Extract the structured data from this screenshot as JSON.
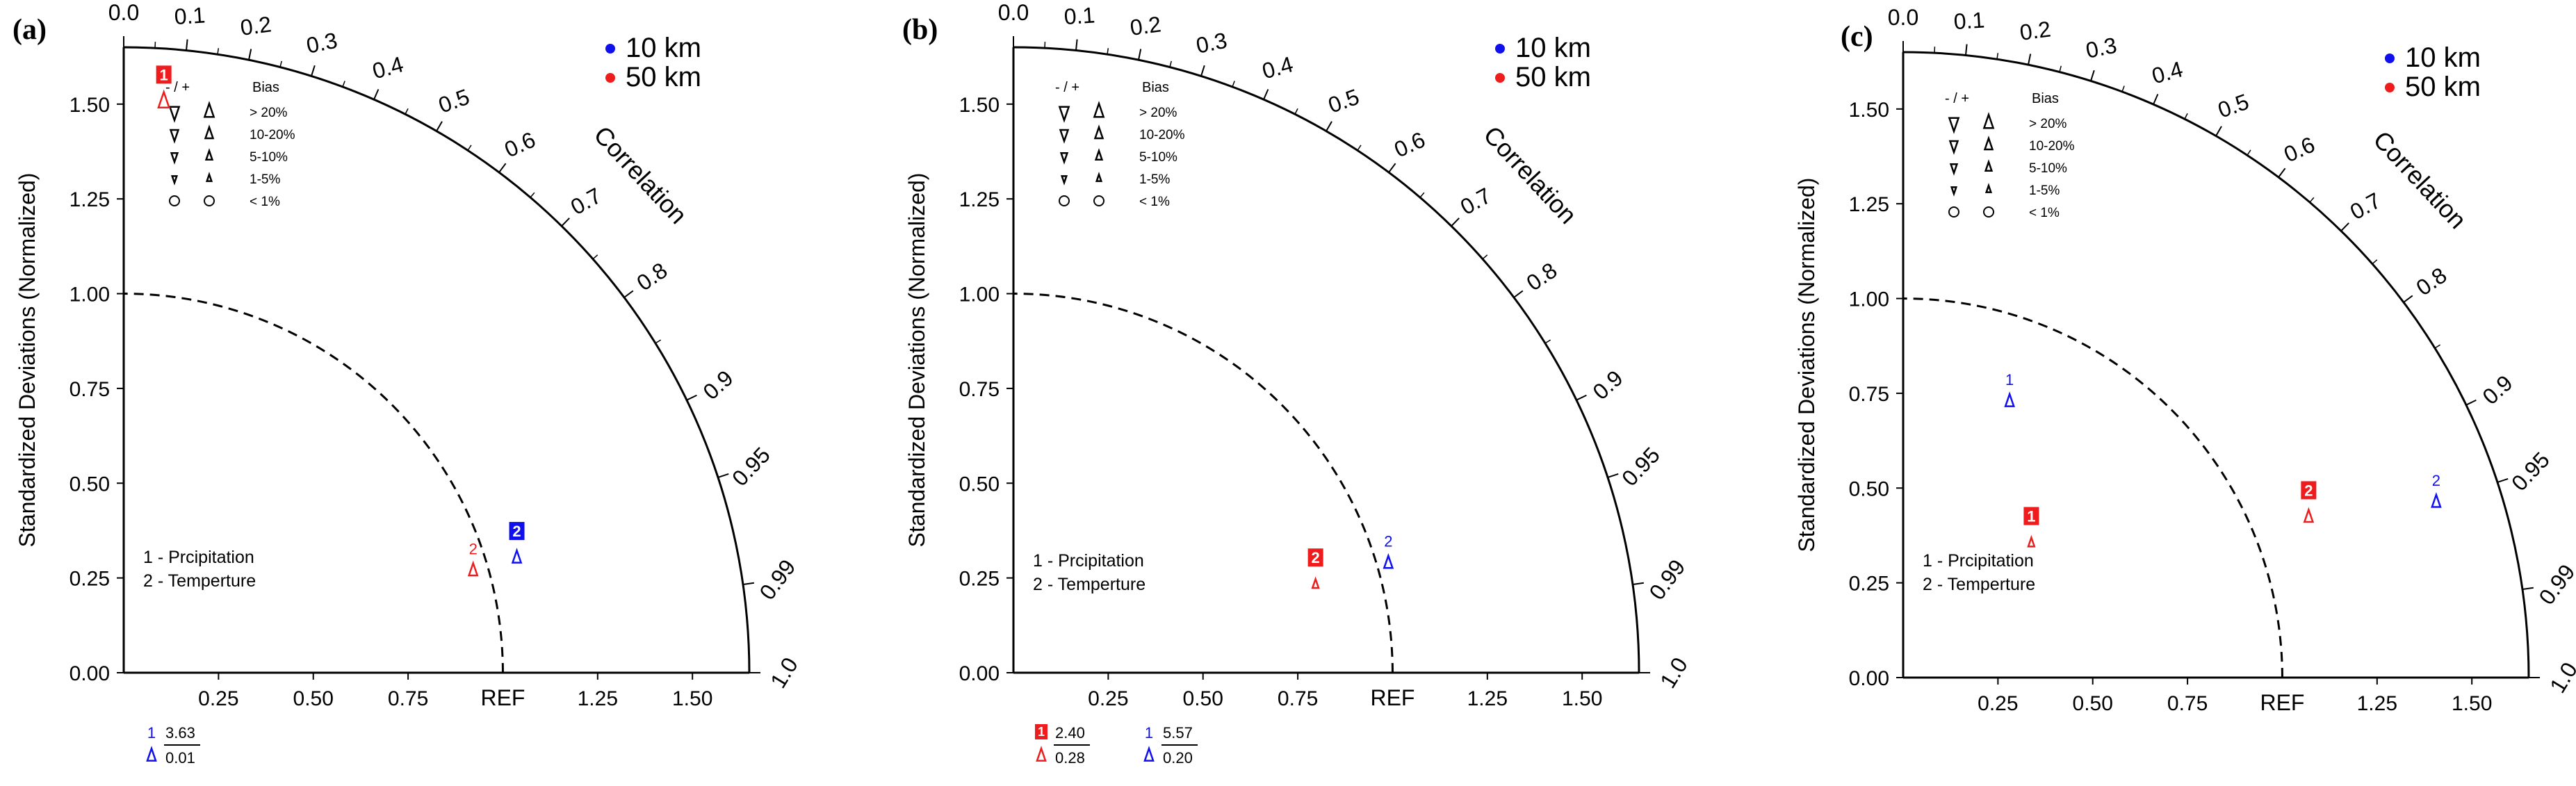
{
  "colors": {
    "series_10km": "#1010ee",
    "series_50km": "#ee1c1c",
    "axis": "#000000",
    "ref_arc": "#000000"
  },
  "shared": {
    "ylabel": "Standardized Deviations (Normalized)",
    "correlation_title": "Correlation",
    "ref_label": "REF",
    "x_ticks": [
      "0.25",
      "0.50",
      "0.75",
      "1.25",
      "1.50"
    ],
    "y_ticks": [
      "0.00",
      "0.25",
      "0.50",
      "0.75",
      "1.00",
      "1.25",
      "1.50"
    ],
    "corr_ticks": [
      "0.0",
      "0.1",
      "0.2",
      "0.3",
      "0.4",
      "0.5",
      "0.6",
      "0.7",
      "0.8",
      "0.9",
      "0.95",
      "0.99",
      "1.0"
    ],
    "legend_series": [
      {
        "name": "10 km",
        "color": "#1010ee"
      },
      {
        "name": "50 km",
        "color": "#ee1c1c"
      }
    ],
    "bias_legend": {
      "header": "Bias",
      "rows": [
        "> 20%",
        "10-20%",
        "5-10%",
        "1-5%",
        "< 1%"
      ]
    },
    "case_labels": [
      "1 - Prcipitation",
      "2 - Temperture"
    ]
  },
  "chart_data": [
    {
      "type": "taylor_diagram",
      "panel": "(a)",
      "bias_legend_signs": "- / +",
      "axis_max": 1.65,
      "points": [
        {
          "series": "50 km",
          "case": "1",
          "std": 1.51,
          "corr": 0.07,
          "bias": "high",
          "marker": "box"
        },
        {
          "series": "50 km",
          "case": "2",
          "std": 0.96,
          "corr": 0.96,
          "bias": "mid",
          "marker": "label"
        },
        {
          "series": "10 km",
          "case": "2",
          "std": 1.08,
          "corr": 0.96,
          "bias": "mid",
          "marker": "box"
        }
      ],
      "offscale": [
        {
          "series": "10 km",
          "case": "1",
          "std": "3.63",
          "corr": "0.01"
        }
      ]
    },
    {
      "type": "taylor_diagram",
      "panel": "(b)",
      "bias_legend_signs": "- / +",
      "axis_max": 1.65,
      "points": [
        {
          "series": "50 km",
          "case": "2",
          "std": 0.83,
          "corr": 0.96,
          "bias": "low",
          "marker": "box"
        },
        {
          "series": "10 km",
          "case": "2",
          "std": 1.03,
          "corr": 0.96,
          "bias": "mid",
          "marker": "label"
        }
      ],
      "offscale": [
        {
          "series": "50 km",
          "case": "1",
          "std": "2.40",
          "corr": "0.28"
        },
        {
          "series": "10 km",
          "case": "1",
          "std": "5.57",
          "corr": "0.20"
        }
      ]
    },
    {
      "type": "taylor_diagram",
      "panel": "(c)",
      "bias_legend_signs": "- / +",
      "axis_max": 1.65,
      "points": [
        {
          "series": "10 km",
          "case": "1",
          "std": 0.78,
          "corr": 0.36,
          "bias": "mid",
          "marker": "label"
        },
        {
          "series": "50 km",
          "case": "1",
          "std": 0.49,
          "corr": 0.69,
          "bias": "low",
          "marker": "box"
        },
        {
          "series": "50 km",
          "case": "2",
          "std": 1.15,
          "corr": 0.93,
          "bias": "mid",
          "marker": "box"
        },
        {
          "series": "10 km",
          "case": "2",
          "std": 1.48,
          "corr": 0.95,
          "bias": "mid",
          "marker": "label"
        }
      ],
      "offscale": []
    }
  ]
}
